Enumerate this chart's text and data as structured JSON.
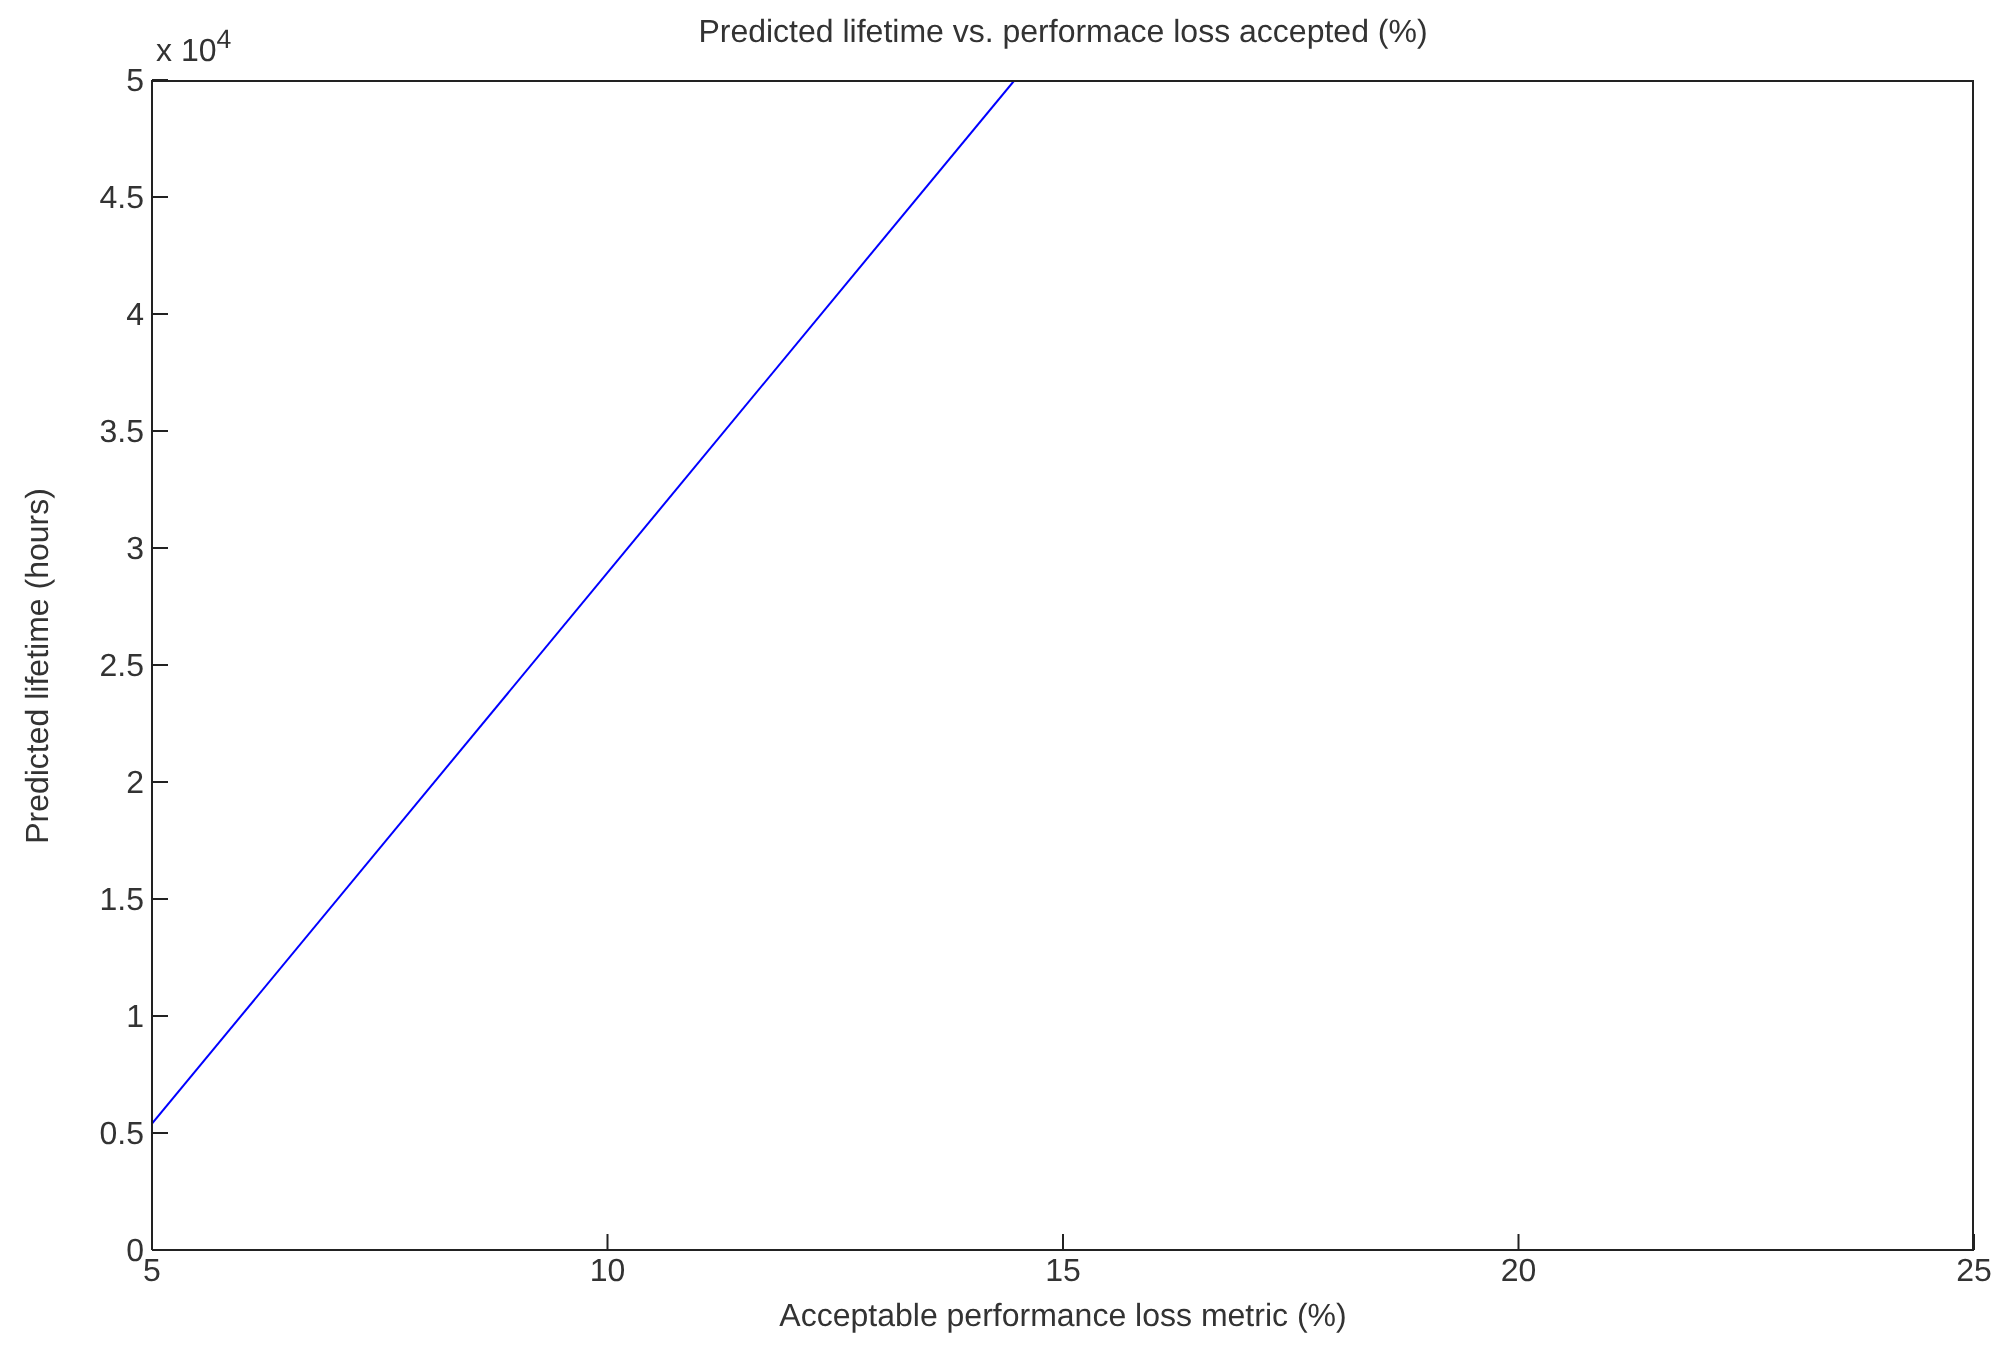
{
  "chart_data": {
    "type": "line",
    "title": "Predicted lifetime vs. performace loss accepted (%)",
    "xlabel": "Acceptable performance loss metric (%)",
    "ylabel": "Predicted lifetime (hours)",
    "annotations": [
      "x 10$^{4}$"
    ],
    "x": [
      5,
      14.47
    ],
    "series": [
      {
        "color": "#0000ff",
        "values": [
          0.54,
          5
        ]
      }
    ],
    "xlim": [
      5,
      25
    ],
    "xticks": [
      5,
      10,
      15,
      20,
      25
    ],
    "ylim": [
      0,
      5
    ],
    "yticks": [
      0,
      0.5,
      1,
      1.5,
      2,
      2.5,
      3,
      3.5,
      4,
      4.5,
      5
    ],
    "grid": false,
    "legend": false,
    "marker": "none",
    "line_style": "solid"
  }
}
